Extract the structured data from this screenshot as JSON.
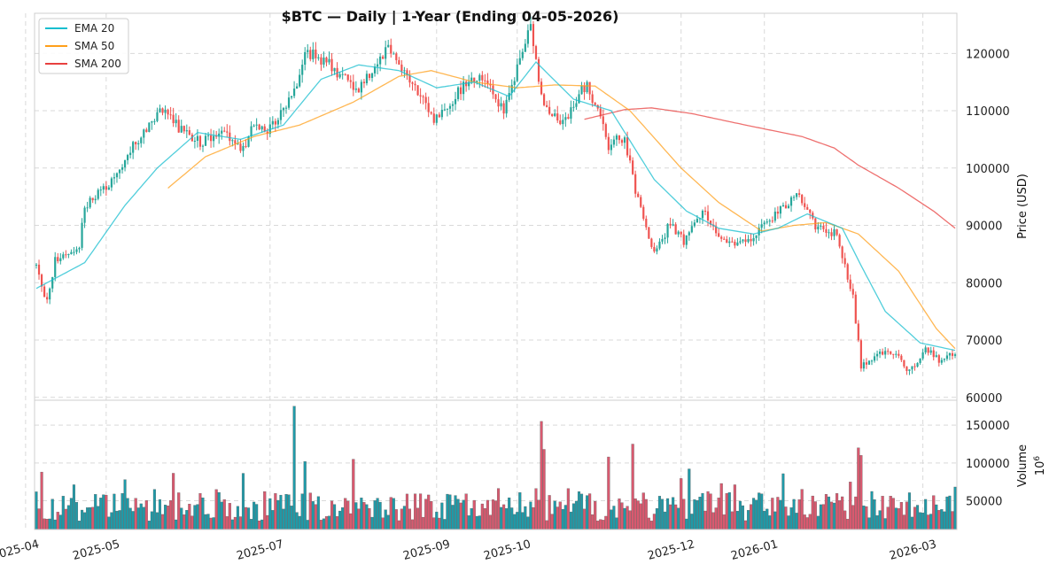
{
  "chart_data": {
    "type": "candlestick",
    "title": "$BTC  —  Daily  |  1-Year (Ending 04-05-2026)",
    "price_axis": {
      "label": "Price (USD)",
      "ylim": [
        59500,
        127000
      ],
      "ticks": [
        60000,
        70000,
        80000,
        90000,
        100000,
        110000,
        120000
      ]
    },
    "volume_axis": {
      "label": "Volume",
      "multiplier": "10",
      "multiplier_exp": "6",
      "ylim": [
        12000,
        183000
      ],
      "ticks": [
        50000,
        100000,
        150000
      ]
    },
    "x_axis": {
      "start": "2025-04-05",
      "end": "2026-03-13",
      "ticks": [
        {
          "date": "2025-04-01",
          "label": "2025-04"
        },
        {
          "date": "2025-05-01",
          "label": "2025-05"
        },
        {
          "date": "2025-07-01",
          "label": "2025-07"
        },
        {
          "date": "2025-09-01",
          "label": "2025-09"
        },
        {
          "date": "2025-10-01",
          "label": "2025-10"
        },
        {
          "date": "2025-12-01",
          "label": "2025-12"
        },
        {
          "date": "2026-01-01",
          "label": "2026-01"
        },
        {
          "date": "2026-03-01",
          "label": "2026-03"
        }
      ]
    },
    "legend": {
      "placement": "top-left",
      "entries": [
        {
          "name": "EMA 20",
          "color": "#17becf"
        },
        {
          "name": "SMA 50",
          "color": "#ff9f1a"
        },
        {
          "name": "SMA 200",
          "color": "#e8403f"
        }
      ]
    },
    "colors": {
      "up": "#26a69a",
      "down": "#ef5350",
      "vol_up": "#1f9aa8",
      "vol_down": "#d9596f"
    },
    "price_anchors": [
      [
        "2025-04-05",
        83000
      ],
      [
        "2025-04-09",
        76500
      ],
      [
        "2025-04-12",
        84000
      ],
      [
        "2025-04-21",
        86500
      ],
      [
        "2025-04-23",
        93500
      ],
      [
        "2025-05-01",
        96500
      ],
      [
        "2025-05-08",
        100500
      ],
      [
        "2025-05-10",
        103500
      ],
      [
        "2025-05-22",
        110500
      ],
      [
        "2025-05-28",
        107000
      ],
      [
        "2025-06-05",
        104500
      ],
      [
        "2025-06-12",
        106500
      ],
      [
        "2025-06-18",
        104500
      ],
      [
        "2025-06-21",
        103200
      ],
      [
        "2025-06-25",
        107500
      ],
      [
        "2025-07-01",
        106800
      ],
      [
        "2025-07-10",
        113500
      ],
      [
        "2025-07-14",
        120500
      ],
      [
        "2025-07-23",
        118300
      ],
      [
        "2025-08-02",
        113500
      ],
      [
        "2025-08-07",
        116500
      ],
      [
        "2025-08-14",
        121500
      ],
      [
        "2025-08-22",
        115200
      ],
      [
        "2025-08-31",
        108500
      ],
      [
        "2025-09-05",
        110700
      ],
      [
        "2025-09-13",
        115800
      ],
      [
        "2025-09-20",
        115500
      ],
      [
        "2025-09-26",
        109500
      ],
      [
        "2025-10-03",
        120500
      ],
      [
        "2025-10-06",
        124500
      ],
      [
        "2025-10-10",
        112500
      ],
      [
        "2025-10-17",
        107000
      ],
      [
        "2025-10-27",
        115000
      ],
      [
        "2025-11-04",
        104000
      ],
      [
        "2025-11-10",
        105500
      ],
      [
        "2025-11-14",
        96000
      ],
      [
        "2025-11-21",
        85000
      ],
      [
        "2025-11-27",
        90500
      ],
      [
        "2025-12-02",
        87000
      ],
      [
        "2025-12-09",
        92500
      ],
      [
        "2025-12-18",
        86500
      ],
      [
        "2025-12-26",
        87500
      ],
      [
        "2026-01-02",
        90500
      ],
      [
        "2026-01-06",
        92500
      ],
      [
        "2026-01-14",
        95500
      ],
      [
        "2026-01-20",
        90000
      ],
      [
        "2026-01-28",
        88500
      ],
      [
        "2026-02-03",
        77500
      ],
      [
        "2026-02-06",
        65500
      ],
      [
        "2026-02-12",
        67500
      ],
      [
        "2026-02-18",
        68000
      ],
      [
        "2026-02-24",
        64500
      ],
      [
        "2026-03-02",
        68500
      ],
      [
        "2026-03-07",
        66500
      ],
      [
        "2026-03-13",
        67400
      ]
    ],
    "ema20_anchors": [
      [
        "2025-04-05",
        79000
      ],
      [
        "2025-04-23",
        83500
      ],
      [
        "2025-05-08",
        93500
      ],
      [
        "2025-05-20",
        100000
      ],
      [
        "2025-06-04",
        106200
      ],
      [
        "2025-06-20",
        105000
      ],
      [
        "2025-07-06",
        107500
      ],
      [
        "2025-07-20",
        115500
      ],
      [
        "2025-08-03",
        118000
      ],
      [
        "2025-08-18",
        117000
      ],
      [
        "2025-09-01",
        114000
      ],
      [
        "2025-09-15",
        115000
      ],
      [
        "2025-09-28",
        112500
      ],
      [
        "2025-10-08",
        118500
      ],
      [
        "2025-10-22",
        112000
      ],
      [
        "2025-11-05",
        110000
      ],
      [
        "2025-11-21",
        98000
      ],
      [
        "2025-12-03",
        92500
      ],
      [
        "2025-12-15",
        89500
      ],
      [
        "2025-12-28",
        88500
      ],
      [
        "2026-01-06",
        89500
      ],
      [
        "2026-01-17",
        92000
      ],
      [
        "2026-01-30",
        89500
      ],
      [
        "2026-02-06",
        83000
      ],
      [
        "2026-02-15",
        75000
      ],
      [
        "2026-02-28",
        69500
      ],
      [
        "2026-03-13",
        68200
      ]
    ],
    "sma50_anchors": [
      [
        "2025-05-24",
        96500
      ],
      [
        "2025-06-07",
        102000
      ],
      [
        "2025-06-25",
        105500
      ],
      [
        "2025-07-12",
        107500
      ],
      [
        "2025-08-01",
        111500
      ],
      [
        "2025-08-18",
        116000
      ],
      [
        "2025-08-30",
        117000
      ],
      [
        "2025-09-15",
        115000
      ],
      [
        "2025-10-01",
        114000
      ],
      [
        "2025-10-15",
        114500
      ],
      [
        "2025-10-30",
        114300
      ],
      [
        "2025-11-12",
        110000
      ],
      [
        "2025-12-01",
        100000
      ],
      [
        "2025-12-15",
        94000
      ],
      [
        "2025-12-31",
        89000
      ],
      [
        "2026-01-12",
        90000
      ],
      [
        "2026-01-24",
        90500
      ],
      [
        "2026-02-05",
        88500
      ],
      [
        "2026-02-20",
        82000
      ],
      [
        "2026-03-06",
        72000
      ],
      [
        "2026-03-13",
        68500
      ]
    ],
    "sma200_anchors": [
      [
        "2025-10-26",
        108500
      ],
      [
        "2025-11-10",
        110200
      ],
      [
        "2025-11-20",
        110500
      ],
      [
        "2025-12-05",
        109500
      ],
      [
        "2025-12-25",
        107500
      ],
      [
        "2026-01-15",
        105500
      ],
      [
        "2026-01-27",
        103500
      ],
      [
        "2026-02-05",
        100500
      ],
      [
        "2026-02-20",
        96500
      ],
      [
        "2026-03-05",
        92500
      ],
      [
        "2026-03-13",
        89500
      ]
    ],
    "volume_spikes": [
      [
        "2025-04-07",
        88000
      ],
      [
        "2025-05-08",
        78000
      ],
      [
        "2025-07-10",
        175000
      ],
      [
        "2025-07-14",
        102000
      ],
      [
        "2025-08-01",
        105000
      ],
      [
        "2025-10-10",
        155000
      ],
      [
        "2025-10-11",
        118000
      ],
      [
        "2025-11-04",
        108000
      ],
      [
        "2025-11-13",
        125000
      ],
      [
        "2026-02-05",
        120000
      ],
      [
        "2026-02-06",
        110000
      ]
    ],
    "volume_base": 52000,
    "seed": 7
  }
}
